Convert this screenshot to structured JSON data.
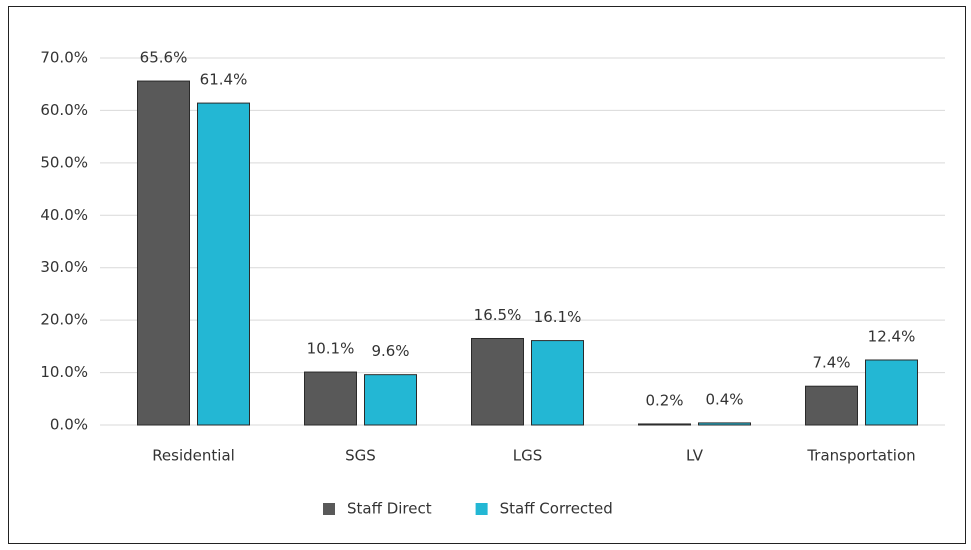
{
  "chart_data": {
    "type": "bar",
    "categories": [
      "Residential",
      "SGS",
      "LGS",
      "LV",
      "Transportation"
    ],
    "series": [
      {
        "name": "Staff Direct",
        "color": "#595959",
        "values": [
          65.6,
          10.1,
          16.5,
          0.2,
          7.4
        ],
        "value_labels": [
          "65.6%",
          "10.1%",
          "16.5%",
          "0.2%",
          "7.4%"
        ]
      },
      {
        "name": "Staff Corrected",
        "color": "#23b7d4",
        "values": [
          61.4,
          9.6,
          16.1,
          0.4,
          12.4
        ],
        "value_labels": [
          "61.4%",
          "9.6%",
          "16.1%",
          "0.4%",
          "12.4%"
        ]
      }
    ],
    "ylim": [
      0,
      70
    ],
    "yticks": [
      {
        "value": 0,
        "label": "0.0%"
      },
      {
        "value": 10,
        "label": "10.0%"
      },
      {
        "value": 20,
        "label": "20.0%"
      },
      {
        "value": 30,
        "label": "30.0%"
      },
      {
        "value": 40,
        "label": "40.0%"
      },
      {
        "value": 50,
        "label": "50.0%"
      },
      {
        "value": 60,
        "label": "60.0%"
      },
      {
        "value": 70,
        "label": "70.0%"
      }
    ],
    "grid": true,
    "legend": "bottom"
  }
}
